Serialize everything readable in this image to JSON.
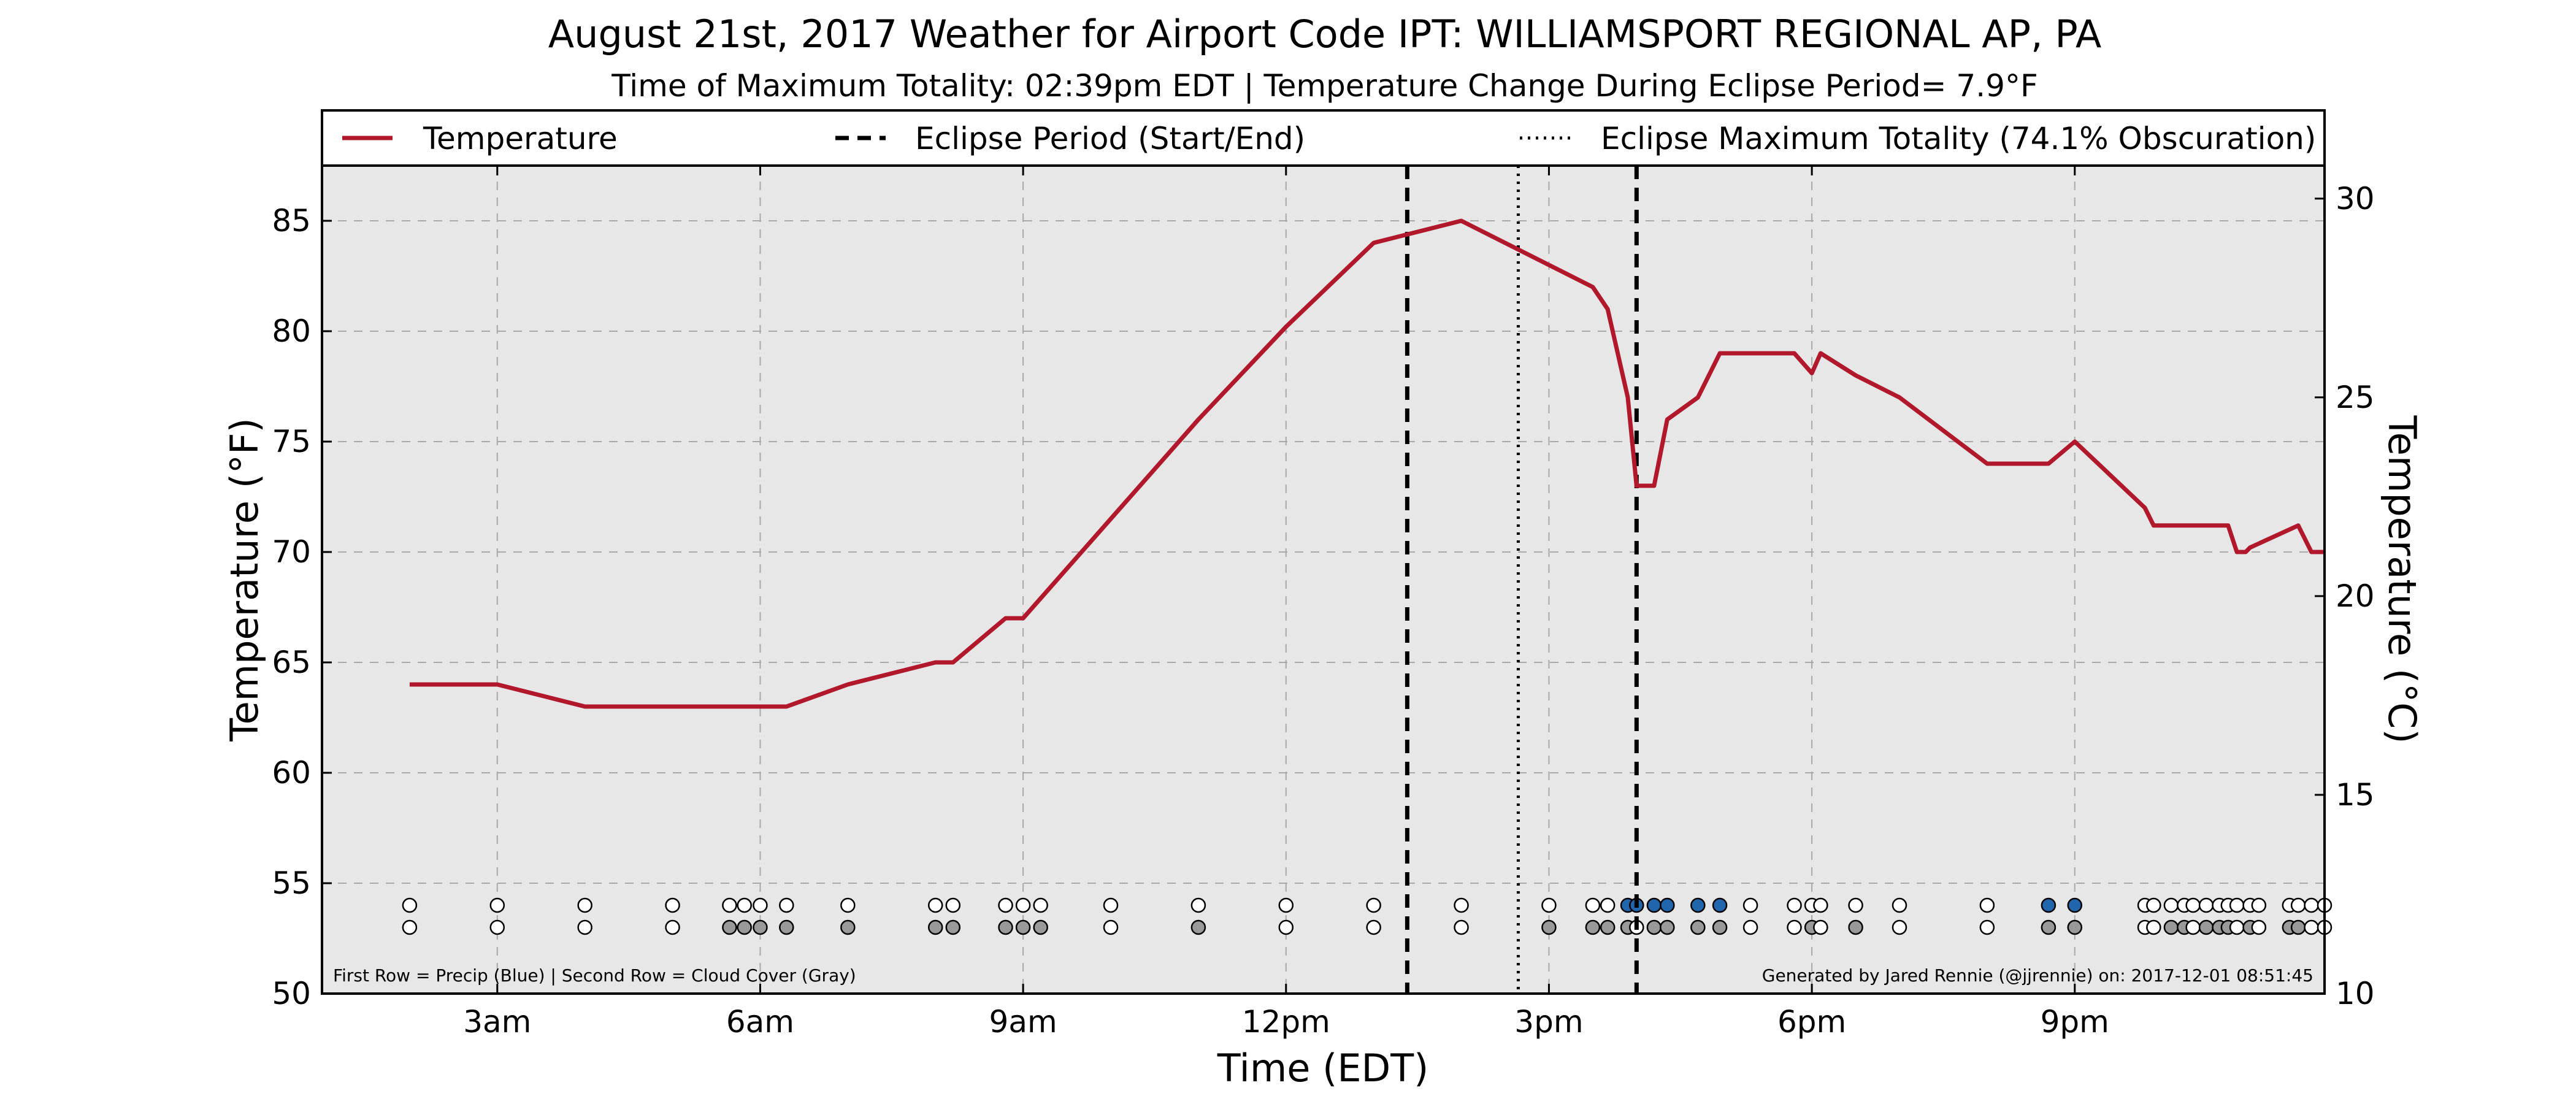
{
  "chart_data": {
    "type": "line",
    "title": "August 21st, 2017 Weather for Airport Code IPT: WILLIAMSPORT REGIONAL AP, PA",
    "subtitle": "Time of Maximum Totality: 02:39pm EDT | Temperature Change During Eclipse Period= 7.9°F",
    "xlabel": "Time (EDT)",
    "ylabel": "Temperature (°F)",
    "ylabel_right": "Temperature (°C)",
    "xlim": [
      1.0,
      23.85
    ],
    "ylim": [
      50,
      87.5
    ],
    "ylim_right_c": [
      10,
      30.83
    ],
    "x_ticks": [
      {
        "x": 3,
        "label": "3am"
      },
      {
        "x": 6,
        "label": "6am"
      },
      {
        "x": 9,
        "label": "9am"
      },
      {
        "x": 12,
        "label": "12pm"
      },
      {
        "x": 15,
        "label": "3pm"
      },
      {
        "x": 18,
        "label": "6pm"
      },
      {
        "x": 21,
        "label": "9pm"
      }
    ],
    "y_ticks": [
      50,
      55,
      60,
      65,
      70,
      75,
      80,
      85
    ],
    "y_ticks_right": [
      10,
      15,
      20,
      25,
      30
    ],
    "grid": true,
    "legend_position": "top, above plot",
    "legend": [
      {
        "label": "Temperature",
        "style": "solid",
        "color": "#b2182b"
      },
      {
        "label": "Eclipse Period (Start/End)",
        "style": "dashed",
        "color": "#000000"
      },
      {
        "label": "Eclipse Maximum Totality (74.1% Obscuration)",
        "style": "dotted",
        "color": "#000000"
      }
    ],
    "series": [
      {
        "name": "Temperature",
        "color": "#b2182b",
        "points": [
          [
            2.0,
            64
          ],
          [
            3.0,
            64
          ],
          [
            4.0,
            63
          ],
          [
            5.0,
            63
          ],
          [
            6.0,
            63
          ],
          [
            6.3,
            63
          ],
          [
            7.0,
            64
          ],
          [
            8.0,
            65
          ],
          [
            8.2,
            65
          ],
          [
            8.8,
            67
          ],
          [
            9.0,
            67
          ],
          [
            10.0,
            71.5
          ],
          [
            11.0,
            76
          ],
          [
            12.0,
            80.2
          ],
          [
            13.0,
            84
          ],
          [
            14.0,
            85
          ],
          [
            15.0,
            83
          ],
          [
            15.5,
            82
          ],
          [
            15.67,
            81
          ],
          [
            15.9,
            77
          ],
          [
            16.0,
            73
          ],
          [
            16.2,
            73
          ],
          [
            16.35,
            76
          ],
          [
            16.7,
            77
          ],
          [
            16.95,
            79
          ],
          [
            17.8,
            79
          ],
          [
            18.0,
            78.1
          ],
          [
            18.1,
            79
          ],
          [
            18.5,
            78
          ],
          [
            19.0,
            77
          ],
          [
            20.0,
            74
          ],
          [
            20.5,
            74
          ],
          [
            20.7,
            74
          ],
          [
            21.0,
            75
          ],
          [
            21.8,
            72
          ],
          [
            21.9,
            71.2
          ],
          [
            22.1,
            71.2
          ],
          [
            22.5,
            71.2
          ],
          [
            22.75,
            71.2
          ],
          [
            22.85,
            70
          ],
          [
            22.95,
            70
          ],
          [
            23.0,
            70.2
          ],
          [
            23.55,
            71.2
          ],
          [
            23.7,
            70
          ],
          [
            23.85,
            70
          ]
        ]
      }
    ],
    "vertical_lines": [
      {
        "x": 13.383,
        "style": "dashed",
        "label": "Eclipse Period (Start/End)"
      },
      {
        "x": 14.65,
        "style": "dotted",
        "label": "Eclipse Maximum Totality (74.1% Obscuration)"
      },
      {
        "x": 16.0,
        "style": "dashed",
        "label": "Eclipse Period (Start/End)"
      }
    ],
    "precip_row": {
      "y": 54,
      "points": [
        [
          2.0,
          "none"
        ],
        [
          3.0,
          "none"
        ],
        [
          4.0,
          "none"
        ],
        [
          5.0,
          "none"
        ],
        [
          5.65,
          "none"
        ],
        [
          5.82,
          "none"
        ],
        [
          6.0,
          "none"
        ],
        [
          6.3,
          "none"
        ],
        [
          7.0,
          "none"
        ],
        [
          8.0,
          "none"
        ],
        [
          8.2,
          "none"
        ],
        [
          8.8,
          "none"
        ],
        [
          9.0,
          "none"
        ],
        [
          9.2,
          "none"
        ],
        [
          10.0,
          "none"
        ],
        [
          11.0,
          "none"
        ],
        [
          12.0,
          "none"
        ],
        [
          13.0,
          "none"
        ],
        [
          14.0,
          "none"
        ],
        [
          15.0,
          "none"
        ],
        [
          15.5,
          "none"
        ],
        [
          15.67,
          "none"
        ],
        [
          15.9,
          "precip"
        ],
        [
          16.0,
          "precip"
        ],
        [
          16.2,
          "precip"
        ],
        [
          16.35,
          "precip"
        ],
        [
          16.7,
          "precip"
        ],
        [
          16.95,
          "precip"
        ],
        [
          17.3,
          "none"
        ],
        [
          17.8,
          "none"
        ],
        [
          18.0,
          "none"
        ],
        [
          18.1,
          "none"
        ],
        [
          18.5,
          "none"
        ],
        [
          19.0,
          "none"
        ],
        [
          20.0,
          "none"
        ],
        [
          20.7,
          "precip"
        ],
        [
          21.0,
          "precip"
        ],
        [
          21.8,
          "none"
        ],
        [
          21.9,
          "none"
        ],
        [
          22.1,
          "none"
        ],
        [
          22.25,
          "none"
        ],
        [
          22.35,
          "none"
        ],
        [
          22.5,
          "none"
        ],
        [
          22.65,
          "none"
        ],
        [
          22.75,
          "none"
        ],
        [
          22.85,
          "none"
        ],
        [
          23.0,
          "none"
        ],
        [
          23.1,
          "none"
        ],
        [
          23.45,
          "none"
        ],
        [
          23.55,
          "none"
        ],
        [
          23.7,
          "none"
        ],
        [
          23.85,
          "none"
        ]
      ]
    },
    "cloud_row": {
      "y": 53,
      "points": [
        [
          2.0,
          "clear"
        ],
        [
          3.0,
          "clear"
        ],
        [
          4.0,
          "clear"
        ],
        [
          5.0,
          "clear"
        ],
        [
          5.65,
          "cloud"
        ],
        [
          5.82,
          "cloud"
        ],
        [
          6.0,
          "cloud"
        ],
        [
          6.3,
          "cloud"
        ],
        [
          7.0,
          "cloud"
        ],
        [
          8.0,
          "cloud"
        ],
        [
          8.2,
          "cloud"
        ],
        [
          8.8,
          "cloud"
        ],
        [
          9.0,
          "cloud"
        ],
        [
          9.2,
          "cloud"
        ],
        [
          10.0,
          "clear"
        ],
        [
          11.0,
          "cloud"
        ],
        [
          12.0,
          "clear"
        ],
        [
          13.0,
          "clear"
        ],
        [
          14.0,
          "clear"
        ],
        [
          15.0,
          "cloud"
        ],
        [
          15.5,
          "cloud"
        ],
        [
          15.67,
          "cloud"
        ],
        [
          15.9,
          "cloud"
        ],
        [
          16.0,
          "clear"
        ],
        [
          16.2,
          "cloud"
        ],
        [
          16.35,
          "cloud"
        ],
        [
          16.7,
          "cloud"
        ],
        [
          16.95,
          "cloud"
        ],
        [
          17.3,
          "clear"
        ],
        [
          17.8,
          "clear"
        ],
        [
          18.0,
          "cloud"
        ],
        [
          18.1,
          "clear"
        ],
        [
          18.5,
          "cloud"
        ],
        [
          19.0,
          "clear"
        ],
        [
          20.0,
          "clear"
        ],
        [
          20.7,
          "cloud"
        ],
        [
          21.0,
          "cloud"
        ],
        [
          21.8,
          "clear"
        ],
        [
          21.9,
          "clear"
        ],
        [
          22.1,
          "cloud"
        ],
        [
          22.25,
          "cloud"
        ],
        [
          22.35,
          "clear"
        ],
        [
          22.5,
          "cloud"
        ],
        [
          22.65,
          "cloud"
        ],
        [
          22.75,
          "cloud"
        ],
        [
          22.85,
          "clear"
        ],
        [
          23.0,
          "cloud"
        ],
        [
          23.1,
          "clear"
        ],
        [
          23.45,
          "cloud"
        ],
        [
          23.55,
          "cloud"
        ],
        [
          23.7,
          "clear"
        ],
        [
          23.85,
          "clear"
        ]
      ]
    },
    "marker_colors": {
      "none": "#ffffff",
      "precip": "#2166ac",
      "clear": "#ffffff",
      "cloud": "#999999"
    },
    "annotations": {
      "footnote_left": "First Row = Precip (Blue) | Second Row = Cloud Cover (Gray)",
      "footnote_right": "Generated by Jared Rennie (@jjrennie) on: 2017-12-01 08:51:45"
    },
    "colors": {
      "plot_background": "#e7e7e7",
      "grid": "#a8a8a8"
    }
  }
}
